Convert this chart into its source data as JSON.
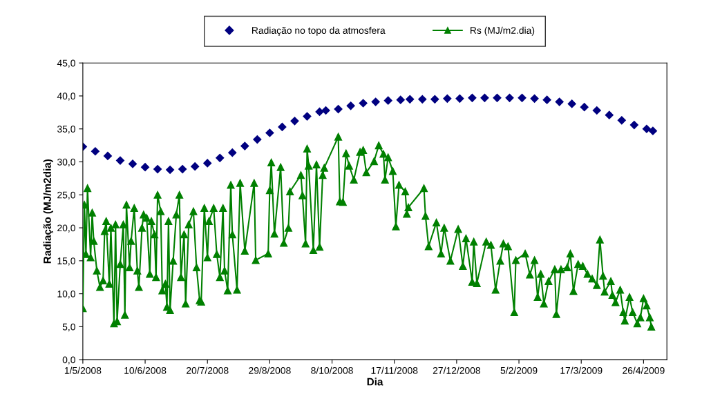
{
  "chart_data": {
    "type": "line",
    "xlabel": "Dia",
    "ylabel": "Radiação (MJ/m2dia)",
    "xlim": [
      "2008-05-01",
      "2009-05-11"
    ],
    "xticks": [
      {
        "value": "2008-05-01",
        "label": "1/5/2008"
      },
      {
        "value": "2008-06-10",
        "label": "10/6/2008"
      },
      {
        "value": "2008-07-20",
        "label": "20/7/2008"
      },
      {
        "value": "2008-08-29",
        "label": "29/8/2008"
      },
      {
        "value": "2008-10-08",
        "label": "8/10/2008"
      },
      {
        "value": "2008-11-17",
        "label": "17/11/2008"
      },
      {
        "value": "2008-12-27",
        "label": "27/12/2008"
      },
      {
        "value": "2009-02-05",
        "label": "5/2/2009"
      },
      {
        "value": "2009-03-17",
        "label": "17/3/2009"
      },
      {
        "value": "2009-04-26",
        "label": "26/4/2009"
      }
    ],
    "ylim": [
      0,
      45
    ],
    "yticks": [
      {
        "value": 0,
        "label": "0,0"
      },
      {
        "value": 5,
        "label": "5,0"
      },
      {
        "value": 10,
        "label": "10,0"
      },
      {
        "value": 15,
        "label": "15,0"
      },
      {
        "value": 20,
        "label": "20,0"
      },
      {
        "value": 25,
        "label": "25,0"
      },
      {
        "value": 30,
        "label": "30,0"
      },
      {
        "value": 35,
        "label": "35,0"
      },
      {
        "value": 40,
        "label": "40,0"
      },
      {
        "value": 45,
        "label": "45,0"
      }
    ],
    "grid": false,
    "legend": "top",
    "series": [
      {
        "name": "Radiação no topo da atmosfera",
        "type": "scatter",
        "color": "#000080",
        "marker": "diamond",
        "x": [
          "2008-05-01",
          "2008-05-09",
          "2008-05-17",
          "2008-05-25",
          "2008-06-02",
          "2008-06-10",
          "2008-06-18",
          "2008-06-26",
          "2008-07-04",
          "2008-07-12",
          "2008-07-20",
          "2008-07-28",
          "2008-08-05",
          "2008-08-13",
          "2008-08-21",
          "2008-08-29",
          "2008-09-06",
          "2008-09-14",
          "2008-09-22",
          "2008-09-30",
          "2008-10-04",
          "2008-10-12",
          "2008-10-20",
          "2008-10-28",
          "2008-11-05",
          "2008-11-13",
          "2008-11-21",
          "2008-11-27",
          "2008-12-05",
          "2008-12-13",
          "2008-12-21",
          "2008-12-29",
          "2009-01-06",
          "2009-01-14",
          "2009-01-22",
          "2009-01-30",
          "2009-02-07",
          "2009-02-15",
          "2009-02-23",
          "2009-03-03",
          "2009-03-11",
          "2009-03-19",
          "2009-03-27",
          "2009-04-04",
          "2009-04-12",
          "2009-04-20",
          "2009-04-28",
          "2009-05-02"
        ],
        "values": [
          32.3,
          31.6,
          30.9,
          30.2,
          29.7,
          29.2,
          28.9,
          28.8,
          28.9,
          29.3,
          29.8,
          30.6,
          31.4,
          32.4,
          33.4,
          34.4,
          35.3,
          36.2,
          36.9,
          37.6,
          37.8,
          38.0,
          38.5,
          38.9,
          39.1,
          39.3,
          39.4,
          39.5,
          39.5,
          39.5,
          39.6,
          39.6,
          39.7,
          39.7,
          39.7,
          39.7,
          39.7,
          39.6,
          39.4,
          39.1,
          38.8,
          38.3,
          37.8,
          37.1,
          36.3,
          35.6,
          35.0,
          34.7
        ]
      },
      {
        "name": "Rs (MJ/m2.dia)",
        "color": "#008000",
        "marker": "triangle",
        "line_style": "solid",
        "x": [
          "2008-05-01",
          "2008-05-02",
          "2008-05-03",
          "2008-05-04",
          "2008-05-06",
          "2008-05-07",
          "2008-05-08",
          "2008-05-10",
          "2008-05-12",
          "2008-05-14",
          "2008-05-15",
          "2008-05-16",
          "2008-05-18",
          "2008-05-19",
          "2008-05-21",
          "2008-05-22",
          "2008-05-23",
          "2008-05-25",
          "2008-05-27",
          "2008-05-28",
          "2008-05-29",
          "2008-05-31",
          "2008-06-01",
          "2008-06-03",
          "2008-06-05",
          "2008-06-06",
          "2008-06-08",
          "2008-06-09",
          "2008-06-11",
          "2008-06-13",
          "2008-06-14",
          "2008-06-16",
          "2008-06-17",
          "2008-06-18",
          "2008-06-20",
          "2008-06-21",
          "2008-06-23",
          "2008-06-24",
          "2008-06-25",
          "2008-06-26",
          "2008-06-28",
          "2008-06-30",
          "2008-07-02",
          "2008-07-03",
          "2008-07-05",
          "2008-07-06",
          "2008-07-08",
          "2008-07-11",
          "2008-07-13",
          "2008-07-15",
          "2008-07-16",
          "2008-07-18",
          "2008-07-20",
          "2008-07-21",
          "2008-07-24",
          "2008-07-26",
          "2008-07-28",
          "2008-07-30",
          "2008-07-31",
          "2008-08-02",
          "2008-08-04",
          "2008-08-05",
          "2008-08-08",
          "2008-08-10",
          "2008-08-13",
          "2008-08-19",
          "2008-08-20",
          "2008-08-28",
          "2008-08-29",
          "2008-08-30",
          "2008-09-01",
          "2008-09-05",
          "2008-09-07",
          "2008-09-10",
          "2008-09-11",
          "2008-09-18",
          "2008-09-19",
          "2008-09-21",
          "2008-09-22",
          "2008-09-23",
          "2008-09-26",
          "2008-09-28",
          "2008-09-30",
          "2008-10-02",
          "2008-10-03",
          "2008-10-12",
          "2008-10-13",
          "2008-10-15",
          "2008-10-17",
          "2008-10-19",
          "2008-10-22",
          "2008-10-26",
          "2008-10-28",
          "2008-10-30",
          "2008-11-04",
          "2008-11-07",
          "2008-11-10",
          "2008-11-11",
          "2008-11-13",
          "2008-11-16",
          "2008-11-18",
          "2008-11-20",
          "2008-11-24",
          "2008-11-25",
          "2008-11-26",
          "2008-12-06",
          "2008-12-07",
          "2008-12-09",
          "2008-12-14",
          "2008-12-17",
          "2008-12-19",
          "2008-12-23",
          "2008-12-28",
          "2008-12-31",
          "2009-01-02",
          "2009-01-06",
          "2009-01-07",
          "2009-01-09",
          "2009-01-15",
          "2009-01-18",
          "2009-01-21",
          "2009-01-24",
          "2009-01-26",
          "2009-01-29",
          "2009-02-02",
          "2009-02-03",
          "2009-02-09",
          "2009-02-12",
          "2009-02-15",
          "2009-02-17",
          "2009-02-19",
          "2009-02-21",
          "2009-02-24",
          "2009-02-28",
          "2009-03-01",
          "2009-03-04",
          "2009-03-08",
          "2009-03-10",
          "2009-03-12",
          "2009-03-15",
          "2009-03-18",
          "2009-03-21",
          "2009-03-24",
          "2009-03-27",
          "2009-03-29",
          "2009-03-31",
          "2009-04-01",
          "2009-04-05",
          "2009-04-06",
          "2009-04-08",
          "2009-04-11",
          "2009-04-13",
          "2009-04-14",
          "2009-04-17",
          "2009-04-19",
          "2009-04-22",
          "2009-04-24",
          "2009-04-26",
          "2009-04-28",
          "2009-04-30",
          "2009-05-01"
        ],
        "values": [
          7.8,
          23.5,
          16.0,
          26.0,
          15.5,
          22.3,
          18.0,
          13.5,
          11.0,
          12.0,
          19.5,
          21.0,
          11.5,
          20.0,
          5.5,
          20.5,
          5.8,
          14.5,
          20.5,
          6.8,
          23.5,
          14.0,
          18.0,
          23.0,
          13.5,
          11.0,
          20.0,
          22.0,
          21.5,
          13.0,
          21.0,
          19.0,
          12.5,
          25.0,
          22.5,
          10.5,
          11.5,
          8.0,
          21.0,
          7.5,
          15.0,
          22.0,
          25.0,
          12.5,
          19.0,
          8.5,
          20.5,
          22.5,
          14.0,
          9.0,
          8.8,
          23.0,
          15.5,
          21.0,
          23.0,
          16.0,
          12.5,
          23.0,
          13.5,
          10.5,
          26.5,
          19.0,
          10.6,
          26.8,
          16.5,
          26.8,
          15.1,
          16.1,
          25.7,
          29.9,
          19.1,
          29.2,
          17.7,
          20.0,
          25.5,
          28.0,
          24.9,
          17.6,
          32.0,
          29.4,
          16.6,
          29.6,
          17.1,
          28.0,
          29.1,
          33.8,
          24.0,
          23.9,
          31.3,
          29.4,
          27.3,
          31.5,
          31.8,
          28.4,
          30.1,
          32.5,
          31.2,
          27.3,
          30.7,
          28.6,
          20.2,
          26.5,
          25.5,
          22.1,
          23.1,
          26.0,
          21.8,
          17.2,
          20.8,
          16.1,
          20.0,
          15.0,
          19.8,
          14.2,
          18.4,
          11.8,
          17.9,
          11.6,
          17.9,
          17.4,
          10.6,
          15.0,
          17.6,
          17.2,
          7.2,
          15.1,
          16.1,
          12.9,
          15.1,
          9.5,
          13.0,
          8.5,
          11.9,
          13.7,
          6.9,
          13.7,
          14.0,
          16.1,
          10.4,
          14.5,
          14.2,
          13.0,
          12.3,
          11.3,
          18.2,
          12.7,
          10.3,
          11.9,
          9.8,
          8.7,
          10.6,
          7.2,
          5.9,
          9.5,
          7.2,
          5.5,
          6.4,
          9.3,
          8.2,
          6.4,
          5.0
        ]
      }
    ]
  }
}
